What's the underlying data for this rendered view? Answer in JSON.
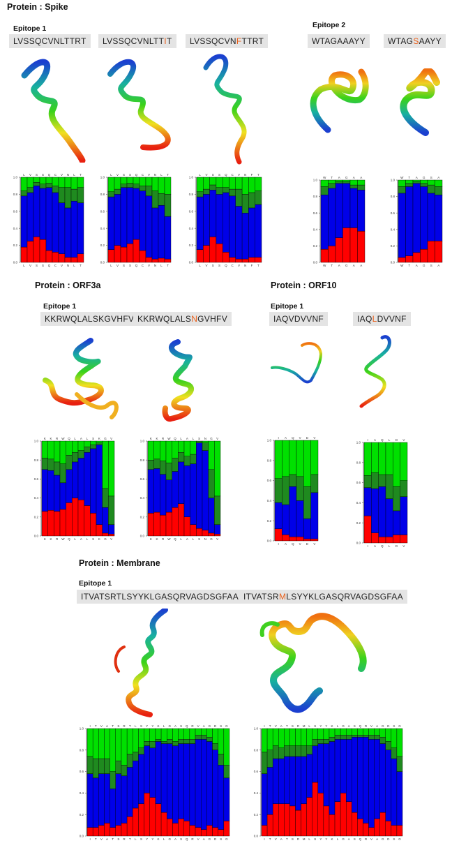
{
  "colors": {
    "mutation": "#e8601c",
    "prob_red": "#ff0000",
    "prob_blue": "#0000e8",
    "prob_darkgreen": "#1f8a1f",
    "prob_green": "#00e000"
  },
  "proteins": [
    {
      "title": "Protein : Spike"
    },
    {
      "title": "Protein : ORF3a"
    },
    {
      "title": "Protein : ORF10"
    },
    {
      "title": "Protein : Membrane"
    }
  ],
  "epitopes": [
    {
      "label": "Epitope 1"
    },
    {
      "label": "Epitope 2"
    },
    {
      "label": "Epitope 1"
    },
    {
      "label": "Epitope 1"
    },
    {
      "label": "Epitope 1"
    }
  ],
  "sequences": [
    {
      "pre": "LVSSQCVNLTTRT",
      "mut": "",
      "post": ""
    },
    {
      "pre": "LVSSQCVNLTT",
      "mut": "I",
      "post": "T"
    },
    {
      "pre": "LVSSQCVN",
      "mut": "F",
      "post": "TTRT"
    },
    {
      "pre": "WTAGAAAYY",
      "mut": "",
      "post": ""
    },
    {
      "pre": "WTAG",
      "mut": "S",
      "post": "AAYY"
    },
    {
      "pre": "KKRWQLALSKGVHFV",
      "mut": "",
      "post": ""
    },
    {
      "pre": "KKRWQLALS",
      "mut": "N",
      "post": "GVHFV"
    },
    {
      "pre": "IAQVDVVNF",
      "mut": "",
      "post": ""
    },
    {
      "pre": "IAQ",
      "mut": "L",
      "post": "DVVNF"
    },
    {
      "pre": "ITVATSRTLSYYKLGASQRVAGDSGFAA",
      "mut": "",
      "post": ""
    },
    {
      "pre": "ITVATSR",
      "mut": "M",
      "post": "LSYYKLGASQRVAGDSGFAA"
    }
  ],
  "chart_data": [
    {
      "type": "stacked-bar",
      "panel": "spike-e1-wt",
      "ylim": [
        0,
        1
      ],
      "yticks": [
        "0.0",
        "0.2",
        "0.4",
        "0.6",
        "0.8",
        "1.0"
      ],
      "residues": [
        "L",
        "V",
        "S",
        "S",
        "Q",
        "C",
        "V",
        "N",
        "L",
        "T"
      ],
      "series": [
        {
          "name": "red",
          "values": [
            0.18,
            0.25,
            0.3,
            0.27,
            0.14,
            0.12,
            0.1,
            0.06,
            0.06,
            0.1
          ]
        },
        {
          "name": "blue",
          "values": [
            0.6,
            0.57,
            0.6,
            0.6,
            0.74,
            0.7,
            0.6,
            0.58,
            0.66,
            0.6
          ]
        },
        {
          "name": "darkgreen",
          "values": [
            0.06,
            0.06,
            0.04,
            0.05,
            0.05,
            0.08,
            0.18,
            0.24,
            0.14,
            0.18
          ]
        }
      ]
    },
    {
      "type": "stacked-bar",
      "panel": "spike-e1-mut1",
      "ylim": [
        0,
        1
      ],
      "yticks": [
        "0.0",
        "0.2",
        "0.4",
        "0.6",
        "0.8",
        "1.0"
      ],
      "residues": [
        "L",
        "V",
        "S",
        "S",
        "Q",
        "C",
        "V",
        "N",
        "L",
        "T"
      ],
      "series": [
        {
          "name": "red",
          "values": [
            0.15,
            0.2,
            0.18,
            0.22,
            0.27,
            0.14,
            0.06,
            0.04,
            0.05,
            0.04
          ]
        },
        {
          "name": "blue",
          "values": [
            0.62,
            0.6,
            0.7,
            0.66,
            0.6,
            0.7,
            0.72,
            0.6,
            0.62,
            0.5
          ]
        },
        {
          "name": "darkgreen",
          "values": [
            0.06,
            0.06,
            0.04,
            0.05,
            0.05,
            0.06,
            0.12,
            0.2,
            0.14,
            0.26
          ]
        }
      ]
    },
    {
      "type": "stacked-bar",
      "panel": "spike-e1-mut2",
      "ylim": [
        0,
        1
      ],
      "yticks": [
        "0.0",
        "0.2",
        "0.4",
        "0.6",
        "0.8",
        "1.0"
      ],
      "residues": [
        "L",
        "V",
        "S",
        "S",
        "Q",
        "C",
        "V",
        "N",
        "F",
        "T"
      ],
      "series": [
        {
          "name": "red",
          "values": [
            0.15,
            0.2,
            0.3,
            0.22,
            0.12,
            0.06,
            0.04,
            0.04,
            0.06,
            0.06
          ]
        },
        {
          "name": "blue",
          "values": [
            0.62,
            0.6,
            0.55,
            0.58,
            0.7,
            0.72,
            0.62,
            0.54,
            0.58,
            0.62
          ]
        },
        {
          "name": "darkgreen",
          "values": [
            0.06,
            0.06,
            0.06,
            0.08,
            0.06,
            0.08,
            0.2,
            0.22,
            0.18,
            0.16
          ]
        }
      ]
    },
    {
      "type": "stacked-bar",
      "panel": "spike-e2-wt",
      "ylim": [
        0,
        1
      ],
      "yticks": [
        "0.0",
        "0.2",
        "0.4",
        "0.6",
        "0.8",
        "1.0"
      ],
      "residues": [
        "W",
        "T",
        "A",
        "G",
        "A",
        "A"
      ],
      "series": [
        {
          "name": "red",
          "values": [
            0.16,
            0.2,
            0.3,
            0.42,
            0.42,
            0.38
          ]
        },
        {
          "name": "blue",
          "values": [
            0.66,
            0.7,
            0.66,
            0.54,
            0.48,
            0.5
          ]
        },
        {
          "name": "darkgreen",
          "values": [
            0.1,
            0.06,
            0.02,
            0.02,
            0.04,
            0.06
          ]
        }
      ]
    },
    {
      "type": "stacked-bar",
      "panel": "spike-e2-mut",
      "ylim": [
        0,
        1
      ],
      "yticks": [
        "0.0",
        "0.2",
        "0.4",
        "0.6",
        "0.8",
        "1.0"
      ],
      "residues": [
        "W",
        "T",
        "A",
        "G",
        "S",
        "A"
      ],
      "series": [
        {
          "name": "red",
          "values": [
            0.06,
            0.08,
            0.12,
            0.16,
            0.26,
            0.26
          ]
        },
        {
          "name": "blue",
          "values": [
            0.78,
            0.84,
            0.84,
            0.76,
            0.58,
            0.56
          ]
        },
        {
          "name": "darkgreen",
          "values": [
            0.08,
            0.04,
            0.02,
            0.04,
            0.1,
            0.1
          ]
        }
      ]
    },
    {
      "type": "stacked-bar",
      "panel": "orf3a-e1-wt",
      "ylim": [
        0,
        1
      ],
      "yticks": [
        "0.0",
        "0.2",
        "0.4",
        "0.6",
        "0.8",
        "1.0"
      ],
      "residues": [
        "K",
        "K",
        "R",
        "W",
        "Q",
        "L",
        "A",
        "L",
        "S",
        "K",
        "G",
        "V"
      ],
      "series": [
        {
          "name": "red",
          "values": [
            0.26,
            0.27,
            0.26,
            0.28,
            0.35,
            0.4,
            0.38,
            0.32,
            0.24,
            0.12,
            0.03,
            0.02
          ]
        },
        {
          "name": "blue",
          "values": [
            0.44,
            0.42,
            0.38,
            0.28,
            0.35,
            0.38,
            0.44,
            0.56,
            0.68,
            0.84,
            0.27,
            0.1
          ]
        },
        {
          "name": "darkgreen",
          "values": [
            0.12,
            0.12,
            0.14,
            0.2,
            0.15,
            0.1,
            0.08,
            0.06,
            0.04,
            0.02,
            0.2,
            0.3
          ]
        }
      ]
    },
    {
      "type": "stacked-bar",
      "panel": "orf3a-e1-mut",
      "ylim": [
        0,
        1
      ],
      "yticks": [
        "0.0",
        "0.2",
        "0.4",
        "0.6",
        "0.8",
        "1.0"
      ],
      "residues": [
        "K",
        "K",
        "R",
        "W",
        "Q",
        "L",
        "A",
        "L",
        "S",
        "N",
        "G",
        "V"
      ],
      "series": [
        {
          "name": "red",
          "values": [
            0.24,
            0.25,
            0.22,
            0.25,
            0.3,
            0.34,
            0.2,
            0.12,
            0.08,
            0.06,
            0.03,
            0.02
          ]
        },
        {
          "name": "blue",
          "values": [
            0.46,
            0.46,
            0.43,
            0.34,
            0.38,
            0.44,
            0.54,
            0.64,
            0.9,
            0.84,
            0.37,
            0.1
          ]
        },
        {
          "name": "darkgreen",
          "values": [
            0.1,
            0.1,
            0.14,
            0.18,
            0.14,
            0.1,
            0.1,
            0.1,
            0.02,
            0.08,
            0.3,
            0.3
          ]
        }
      ]
    },
    {
      "type": "stacked-bar",
      "panel": "orf10-e1-wt",
      "ylim": [
        0,
        1
      ],
      "yticks": [
        "0.0",
        "0.2",
        "0.4",
        "0.6",
        "0.8",
        "1.0"
      ],
      "residues": [
        "I",
        "A",
        "Q",
        "V",
        "D",
        "V"
      ],
      "series": [
        {
          "name": "red",
          "values": [
            0.12,
            0.06,
            0.04,
            0.04,
            0.02,
            0.02
          ]
        },
        {
          "name": "blue",
          "values": [
            0.26,
            0.3,
            0.5,
            0.36,
            0.2,
            0.46
          ]
        },
        {
          "name": "darkgreen",
          "values": [
            0.24,
            0.28,
            0.12,
            0.24,
            0.32,
            0.18
          ]
        }
      ]
    },
    {
      "type": "stacked-bar",
      "panel": "orf10-e1-mut",
      "ylim": [
        0,
        1
      ],
      "yticks": [
        "0.0",
        "0.2",
        "0.4",
        "0.6",
        "0.8",
        "1.0"
      ],
      "residues": [
        "I",
        "A",
        "Q",
        "L",
        "D",
        "V"
      ],
      "series": [
        {
          "name": "red",
          "values": [
            0.27,
            0.1,
            0.06,
            0.06,
            0.08,
            0.08
          ]
        },
        {
          "name": "blue",
          "values": [
            0.28,
            0.44,
            0.5,
            0.38,
            0.24,
            0.38
          ]
        },
        {
          "name": "darkgreen",
          "values": [
            0.12,
            0.16,
            0.12,
            0.24,
            0.24,
            0.16
          ]
        }
      ]
    },
    {
      "type": "stacked-bar",
      "panel": "membrane-e1-wt",
      "ylim": [
        0,
        1
      ],
      "yticks": [
        "0.0",
        "0.2",
        "0.4",
        "0.6",
        "0.8",
        "1.0"
      ],
      "residues": [
        "I",
        "T",
        "V",
        "A",
        "T",
        "S",
        "R",
        "T",
        "L",
        "S",
        "Y",
        "Y",
        "K",
        "L",
        "G",
        "A",
        "S",
        "Q",
        "R",
        "V",
        "A",
        "G",
        "D",
        "S",
        "G"
      ],
      "series": [
        {
          "name": "red",
          "values": [
            0.08,
            0.08,
            0.1,
            0.12,
            0.08,
            0.1,
            0.12,
            0.18,
            0.26,
            0.3,
            0.4,
            0.36,
            0.3,
            0.22,
            0.16,
            0.12,
            0.16,
            0.14,
            0.1,
            0.08,
            0.06,
            0.1,
            0.08,
            0.06,
            0.14
          ]
        },
        {
          "name": "blue",
          "values": [
            0.5,
            0.46,
            0.48,
            0.46,
            0.36,
            0.48,
            0.44,
            0.46,
            0.44,
            0.46,
            0.44,
            0.46,
            0.58,
            0.64,
            0.7,
            0.72,
            0.7,
            0.72,
            0.76,
            0.82,
            0.84,
            0.78,
            0.72,
            0.6,
            0.4
          ]
        },
        {
          "name": "darkgreen",
          "values": [
            0.16,
            0.18,
            0.14,
            0.14,
            0.16,
            0.12,
            0.1,
            0.12,
            0.08,
            0.06,
            0.04,
            0.06,
            0.02,
            0.02,
            0.04,
            0.04,
            0.04,
            0.04,
            0.04,
            0.04,
            0.04,
            0.04,
            0.06,
            0.1,
            0.12
          ]
        }
      ]
    },
    {
      "type": "stacked-bar",
      "panel": "membrane-e1-mut",
      "ylim": [
        0,
        1
      ],
      "yticks": [
        "0.0",
        "0.2",
        "0.4",
        "0.6",
        "0.8",
        "1.0"
      ],
      "residues": [
        "I",
        "T",
        "V",
        "A",
        "T",
        "S",
        "R",
        "M",
        "L",
        "S",
        "Y",
        "Y",
        "K",
        "L",
        "G",
        "A",
        "S",
        "Q",
        "R",
        "V",
        "A",
        "G",
        "D",
        "S",
        "G"
      ],
      "series": [
        {
          "name": "red",
          "values": [
            0.1,
            0.2,
            0.3,
            0.3,
            0.3,
            0.28,
            0.24,
            0.3,
            0.36,
            0.5,
            0.4,
            0.28,
            0.2,
            0.32,
            0.4,
            0.32,
            0.22,
            0.16,
            0.12,
            0.08,
            0.16,
            0.22,
            0.14,
            0.1,
            0.1
          ]
        },
        {
          "name": "blue",
          "values": [
            0.48,
            0.44,
            0.42,
            0.42,
            0.44,
            0.46,
            0.5,
            0.44,
            0.4,
            0.34,
            0.46,
            0.58,
            0.68,
            0.58,
            0.5,
            0.58,
            0.7,
            0.76,
            0.8,
            0.82,
            0.74,
            0.64,
            0.66,
            0.62,
            0.5
          ]
        },
        {
          "name": "darkgreen",
          "values": [
            0.2,
            0.16,
            0.12,
            0.1,
            0.1,
            0.1,
            0.1,
            0.1,
            0.08,
            0.06,
            0.04,
            0.04,
            0.04,
            0.04,
            0.04,
            0.04,
            0.02,
            0.02,
            0.02,
            0.04,
            0.04,
            0.06,
            0.08,
            0.1,
            0.14
          ]
        }
      ]
    }
  ]
}
